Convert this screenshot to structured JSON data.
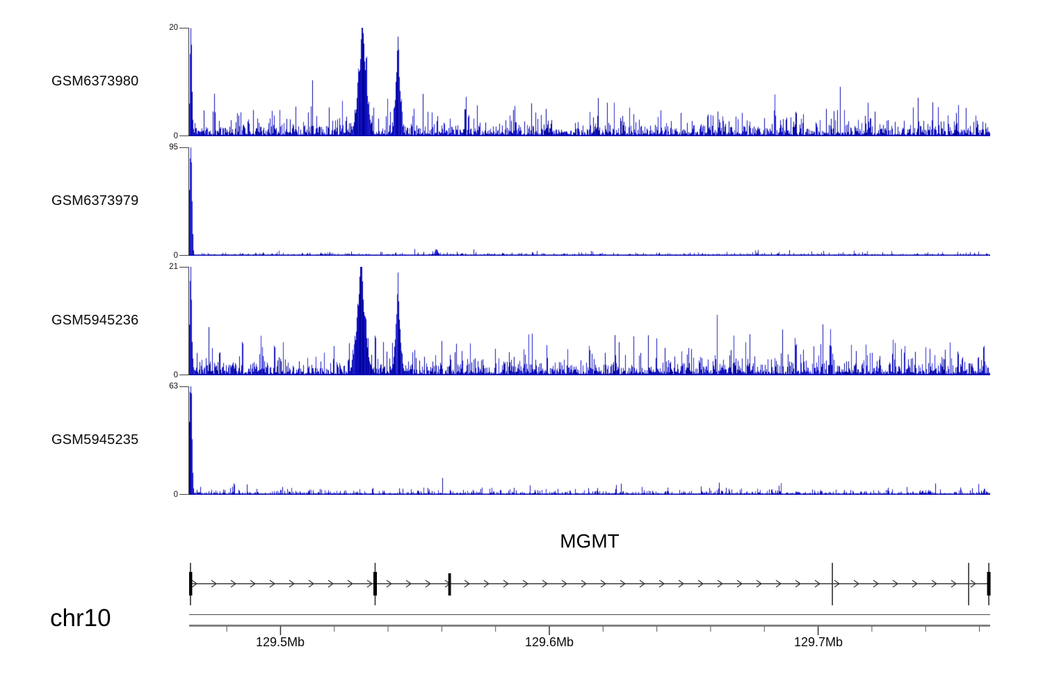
{
  "figure": {
    "chromosome_label": "chr10"
  },
  "chart_data": {
    "type": "genome-coverage-tracks",
    "chromosome": "chr10",
    "colors": {
      "signal_blue": "#1010c8",
      "signal_blue_dark": "#000092",
      "signal_blue_bright": "#2a2ad8",
      "signal_baseline": "#0000b2",
      "axis_gray": "#3f3f3f",
      "gene_black": "#000000"
    },
    "axis": {
      "unit": "Mb",
      "start_mb": 129.466,
      "end_mb": 129.764,
      "major_ticks": [
        {
          "mb": 129.5,
          "label": "129.5Mb"
        },
        {
          "mb": 129.6,
          "label": "129.6Mb"
        },
        {
          "mb": 129.7,
          "label": "129.7Mb"
        }
      ],
      "minor_tick_interval_mb": 0.02,
      "minor_tick_start_mb": 129.48,
      "minor_tick_end_mb": 129.76
    },
    "tracks": [
      {
        "label": "GSM6373980",
        "ymax": 20,
        "ymax_label": "20",
        "zero_label": "0",
        "ylim": [
          0,
          20
        ],
        "baseline_noise_mean": 1.15,
        "peaks": [
          [
            129.4667,
            19.0,
            0.00035
          ],
          [
            129.5305,
            13.0,
            0.0016
          ],
          [
            129.5305,
            7.0,
            0.0005
          ],
          [
            129.5437,
            12.0,
            0.0009
          ],
          [
            129.5437,
            4.0,
            0.0003
          ]
        ]
      },
      {
        "label": "GSM6373979",
        "ymax": 95,
        "ymax_label": "95",
        "zero_label": "0",
        "ylim": [
          0,
          95
        ],
        "baseline_noise_mean": 0.75,
        "peaks": [
          [
            129.4667,
            93.0,
            0.0004
          ],
          [
            129.4662,
            25.0,
            0.0002
          ],
          [
            129.558,
            5.0,
            0.0006
          ]
        ]
      },
      {
        "label": "GSM5945236",
        "ymax": 21,
        "ymax_label": "21",
        "zero_label": "0",
        "ylim": [
          0,
          21
        ],
        "baseline_noise_mean": 1.35,
        "peaks": [
          [
            129.4666,
            20.5,
            0.00035
          ],
          [
            129.53,
            14.0,
            0.0016
          ],
          [
            129.53,
            7.0,
            0.0005
          ],
          [
            129.5437,
            12.0,
            0.0009
          ],
          [
            129.5437,
            3.5,
            0.0003
          ],
          [
            129.7046,
            6.5,
            0.0003
          ]
        ]
      },
      {
        "label": "GSM5945235",
        "ymax": 63,
        "ymax_label": "63",
        "zero_label": "0",
        "ylim": [
          0,
          63
        ],
        "baseline_noise_mean": 0.9,
        "peaks": [
          [
            129.4667,
            62.0,
            0.0004
          ],
          [
            129.4662,
            20.0,
            0.0002
          ]
        ]
      }
    ],
    "gene_track": {
      "gene_name": "MGMT",
      "strand": "forward",
      "features": [
        {
          "mb": 129.4665,
          "kind": "line"
        },
        {
          "mb": 129.4665,
          "kind": "box"
        },
        {
          "mb": 129.5352,
          "kind": "line"
        },
        {
          "mb": 129.5352,
          "kind": "box"
        },
        {
          "mb": 129.5629,
          "kind": "smallbox"
        },
        {
          "mb": 129.7053,
          "kind": "line"
        },
        {
          "mb": 129.756,
          "kind": "line"
        },
        {
          "mb": 129.7635,
          "kind": "line"
        },
        {
          "mb": 129.7635,
          "kind": "box"
        }
      ]
    }
  }
}
